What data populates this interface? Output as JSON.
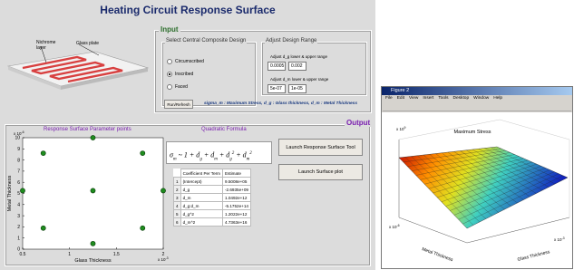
{
  "title": "Heating Circuit Response Surface",
  "image_labels": {
    "nichrome": "Nichrome layer",
    "glass": "Glass plate"
  },
  "input": {
    "title": "Input",
    "design_group": {
      "title": "Select Central Composite Design",
      "options": [
        "Circumscribed",
        "Inscribed",
        "Faced"
      ],
      "selected_index": 1
    },
    "range_group": {
      "title": "Adjust Design Range",
      "dg_label": "Adjust d_g lower & upper range",
      "dg_values": [
        "0.0005",
        "0.002"
      ],
      "dm_label": "Adjust d_m lower & upper range",
      "dm_values": [
        "5e-07",
        "1e-05"
      ]
    },
    "run_button": "Run/Refresh",
    "note": "sigma_m : Maximum Stress, d_g : Glass thickness,  d_m : Metal Thickness"
  },
  "output": {
    "title": "Output",
    "formula_title": "Quadratic Formula",
    "formula": [
      {
        "t": "σ"
      },
      {
        "sub": "m"
      },
      {
        "t": " ~ 1 + d"
      },
      {
        "sub": "g"
      },
      {
        "t": " + d"
      },
      {
        "sub": "m"
      },
      {
        "t": " + d"
      },
      {
        "sub": "g"
      },
      {
        "sup": "2"
      },
      {
        "t": " + d"
      },
      {
        "sub": "m"
      },
      {
        "sup": "2"
      }
    ],
    "table": {
      "columns": [
        "Coefficient Per Term",
        "Estimate"
      ],
      "rows": [
        [
          "1",
          "(Intercept)",
          "9.5008e+05"
        ],
        [
          "2",
          "d_g",
          "-2.6935e+09"
        ],
        [
          "3",
          "d_m",
          "1.0492e+12"
        ],
        [
          "4",
          "d_g:d_m",
          "-5.1752e+14"
        ],
        [
          "5",
          "d_g^2",
          "1.2022e+12"
        ],
        [
          "6",
          "d_m^2",
          "4.7363e+16"
        ]
      ]
    },
    "buttons": [
      "Launch Response Surface Tool",
      "Launch Surface plot"
    ]
  },
  "chart_data": {
    "type": "scatter",
    "title": "Response Surface Parameter points",
    "x_label": "Glass Thickness",
    "y_label": "Metal Thickness",
    "x_multiplier": {
      "base": "x 10",
      "exp": "-3"
    },
    "y_multiplier": {
      "base": "x 10",
      "exp": "-6"
    },
    "x": [
      0.72,
      1.78,
      0.72,
      1.78,
      0.5,
      2,
      1.25,
      1.25,
      1.25
    ],
    "y": [
      1.89,
      1.89,
      8.61,
      8.61,
      5.25,
      5.25,
      0.5,
      10,
      5.25
    ],
    "color": "#1e8c1e",
    "xlim": [
      0.5,
      2
    ],
    "ylim": [
      0,
      10
    ],
    "xticks": [
      0.5,
      1,
      1.5,
      2
    ],
    "yticks": [
      0,
      1,
      2,
      3,
      4,
      5,
      6,
      7,
      8,
      9,
      10
    ]
  },
  "figure": {
    "title": "Figure 2",
    "menu": [
      "File",
      "Edit",
      "View",
      "Insert",
      "Tools",
      "Desktop",
      "Window",
      "Help"
    ],
    "plot_title": "Maximum Stress",
    "x_label": "Glass Thickness",
    "y_label": "Metal Thickness",
    "z_multiplier": {
      "base": "x 10",
      "exp": "9"
    },
    "x_multiplier": {
      "base": "x 10",
      "exp": "-3"
    },
    "y_multiplier": {
      "base": "x 10",
      "exp": "-6"
    }
  }
}
